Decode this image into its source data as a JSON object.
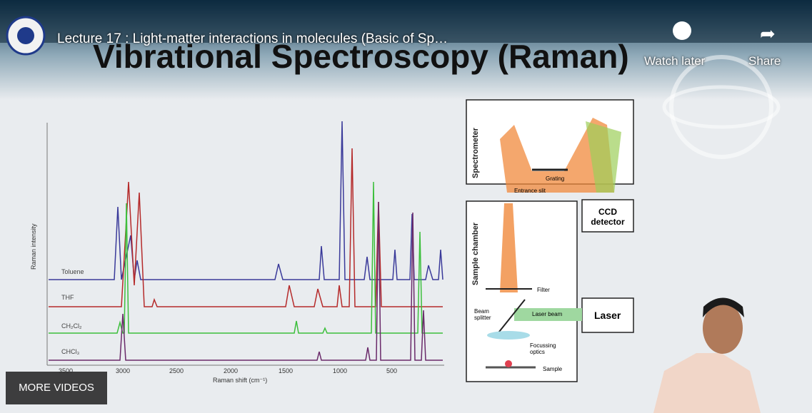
{
  "player": {
    "video_title": "Lecture 17 : Light-matter interactions in molecules (Basic of Sp…",
    "watch_later": "Watch later",
    "share": "Share",
    "more_videos": "MORE VIDEOS"
  },
  "slide": {
    "title": "Vibrational Spectroscopy (Raman)",
    "spectrum": {
      "y_label": "Raman intensity",
      "x_label": "Raman shift (cm⁻¹)",
      "x_ticks": [
        "3500",
        "3000",
        "2500",
        "2000",
        "1500",
        "1000",
        "500"
      ],
      "traces": [
        "Toluene",
        "THF",
        "CH₂Cl₂",
        "CHCl₃"
      ]
    },
    "diagram": {
      "spectrometer": "Spectrometer",
      "grating": "Grating",
      "entrance_slit": "Entrance slit",
      "ccd": "CCD detector",
      "sample_chamber": "Sample chamber",
      "filter": "Filter",
      "beam_splitter": "Beam splitter",
      "laser_beam": "Laser beam",
      "laser": "Laser",
      "focussing_optics": "Focussing optics",
      "sample": "Sample"
    }
  }
}
